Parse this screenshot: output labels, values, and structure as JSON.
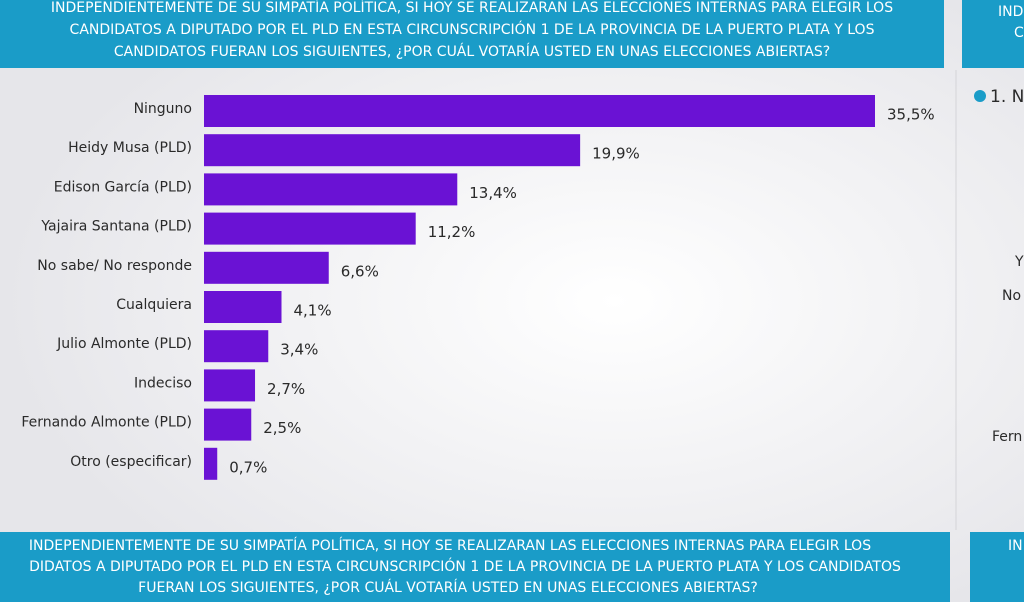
{
  "header": {
    "lines": [
      "INDEPENDIENTEMENTE DE SU SIMPATÍA POLÍTICA, SI HOY SE REALIZARAN LAS ELECCIONES INTERNAS PARA ELEGIR LOS",
      "CANDIDATOS A DIPUTADO POR EL PLD EN ESTA CIRCUNSCRIPCIÓN 1 DE LA PROVINCIA DE LA PUERTO PLATA Y LOS",
      "CANDIDATOS FUERAN LOS SIGUIENTES, ¿POR CUÁL VOTARÍA USTED EN UNAS ELECCIONES ABIERTAS?"
    ]
  },
  "chart_data": {
    "type": "bar",
    "orientation": "horizontal",
    "color": "#6a12d4",
    "categories": [
      "Ninguno",
      "Heidy Musa (PLD)",
      "Edison García (PLD)",
      "Yajaira Santana (PLD)",
      "No sabe/ No responde",
      "Cualquiera",
      "Julio Almonte (PLD)",
      "Indeciso",
      "Fernando Almonte (PLD)",
      "Otro (especificar)"
    ],
    "values": [
      35.5,
      19.9,
      13.4,
      11.2,
      6.6,
      4.1,
      3.4,
      2.7,
      2.5,
      0.7
    ],
    "value_labels": [
      "35,5%",
      "19,9%",
      "13,4%",
      "11,2%",
      "6,6%",
      "4,1%",
      "3,4%",
      "2,7%",
      "2,5%",
      "0,7%"
    ]
  },
  "footer": {
    "lines": [
      "INDEPENDIENTEMENTE DE SU SIMPATÍA POLÍTICA, SI HOY SE REALIZARAN LAS ELECCIONES INTERNAS PARA ELEGIR LOS",
      "DIDATOS A DIPUTADO POR EL PLD EN ESTA CIRCUNSCRIPCIÓN 1 DE LA PROVINCIA DE LA PUERTO PLATA Y LOS CANDIDATOS",
      "FUERAN LOS SIGUIENTES, ¿POR CUÁL VOTARÍA USTED EN UNAS ELECCIONES ABIERTAS?"
    ]
  },
  "side_panel": {
    "header": [
      "IND",
      "C"
    ],
    "item": "1. N",
    "labels": [
      "Y",
      "No",
      "Fern"
    ],
    "footer": "IN"
  }
}
